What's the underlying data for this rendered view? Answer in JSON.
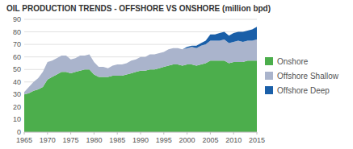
{
  "chart_data": {
    "type": "area",
    "stacked": true,
    "title": "OIL PRODUCTION TRENDS - OFFSHORE VS ONSHORE (million bpd)",
    "x": [
      1965,
      1966,
      1967,
      1968,
      1969,
      1970,
      1971,
      1972,
      1973,
      1974,
      1975,
      1976,
      1977,
      1978,
      1979,
      1980,
      1981,
      1982,
      1983,
      1984,
      1985,
      1986,
      1987,
      1988,
      1989,
      1990,
      1991,
      1992,
      1993,
      1994,
      1995,
      1996,
      1997,
      1998,
      1999,
      2000,
      2001,
      2002,
      2003,
      2004,
      2005,
      2006,
      2007,
      2008,
      2009,
      2010,
      2011,
      2012,
      2013,
      2014,
      2015
    ],
    "series": [
      {
        "name": "Onshore",
        "color": "#4cae4c",
        "values": [
          30,
          31,
          33,
          34,
          36,
          42,
          44,
          46,
          48,
          48,
          47,
          48,
          49,
          50,
          50,
          46,
          44,
          44,
          44,
          45,
          45,
          45,
          46,
          47,
          48,
          49,
          49,
          50,
          50,
          51,
          52,
          53,
          54,
          54,
          53,
          54,
          54,
          53,
          54,
          55,
          57,
          57,
          57,
          57,
          55,
          56,
          56,
          56,
          57,
          57,
          57
        ]
      },
      {
        "name": "Offshore Shallow",
        "color": "#aab4cc",
        "values": [
          2,
          5,
          7,
          9,
          12,
          14,
          13,
          13,
          13,
          13,
          11,
          11,
          12,
          11,
          12,
          10,
          8,
          8,
          7,
          8,
          9,
          9,
          9,
          10,
          10,
          11,
          11,
          12,
          12,
          12,
          12,
          13,
          13,
          13,
          13,
          13,
          14,
          14,
          15,
          15,
          16,
          16,
          16,
          17,
          16,
          16,
          17,
          16,
          16,
          16,
          17
        ]
      },
      {
        "name": "Offshore Deep",
        "color": "#1a5fa8",
        "values": [
          0,
          0,
          0,
          0,
          0,
          0,
          0,
          0,
          0,
          0,
          0,
          0,
          0,
          0,
          0,
          0,
          0,
          0,
          0,
          0,
          0,
          0,
          0,
          0,
          0,
          0,
          0,
          0,
          0,
          0,
          0,
          0,
          0,
          0,
          0,
          1,
          1,
          2,
          2,
          3,
          5,
          5,
          6,
          6,
          6,
          7,
          7,
          8,
          8,
          9,
          10
        ]
      }
    ],
    "xlim": [
      1965,
      2015
    ],
    "xticks": [
      1965,
      1970,
      1975,
      1980,
      1985,
      1990,
      1995,
      2000,
      2005,
      2010,
      2015
    ],
    "ylim": [
      0,
      90
    ],
    "yticks": [
      0,
      10,
      20,
      30,
      40,
      50,
      60,
      70,
      80,
      90
    ],
    "grid": true,
    "legend": "right"
  }
}
